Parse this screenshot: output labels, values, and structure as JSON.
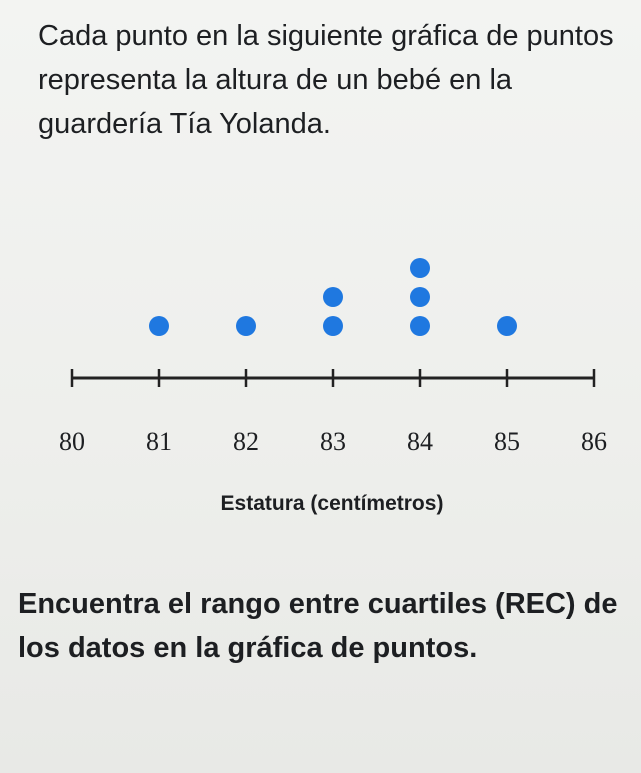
{
  "intro_text": "Cada punto en la siguiente gráfica de puntos representa la altura de un bebé en la guardería Tía Yolanda.",
  "question_text": "Encuentra el rango entre cuartiles (REC) de los datos en la gráfica de puntos.",
  "chart_data": {
    "type": "dot_plot",
    "xlabel": "Estatura (centímetros)",
    "xlim": [
      80,
      86
    ],
    "ticks": [
      80,
      81,
      82,
      83,
      84,
      85,
      86
    ],
    "tick_labels": [
      "80",
      "81",
      "82",
      "83",
      "84",
      "85",
      "86"
    ],
    "points": [
      {
        "x": 81,
        "count": 1
      },
      {
        "x": 82,
        "count": 1
      },
      {
        "x": 83,
        "count": 2
      },
      {
        "x": 84,
        "count": 3
      },
      {
        "x": 85,
        "count": 1
      }
    ],
    "dot_color": "#1f78e0",
    "axis_color": "#222222",
    "grid": false
  }
}
